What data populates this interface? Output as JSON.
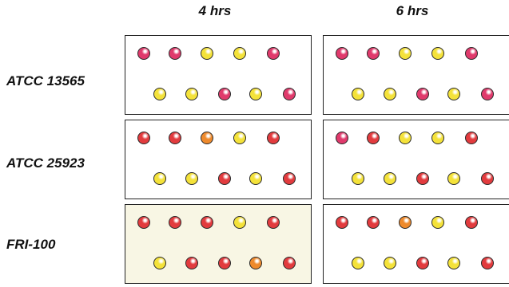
{
  "columns": [
    {
      "label": "4 hrs"
    },
    {
      "label": "6 hrs"
    }
  ],
  "rows": [
    {
      "label": "ATCC 13565"
    },
    {
      "label": "ATCC 25923"
    },
    {
      "label": "FRI-100"
    }
  ],
  "colors": {
    "yellow": "#f4e23a",
    "pink": "#e03a6c",
    "red": "#e23b3e",
    "orange": "#ee8a2c",
    "tinted_panel": "#f8f6e4"
  },
  "wells": [
    {
      "panels": [
        {
          "top": [
            "pink",
            "pink",
            "yellow",
            "yellow",
            "pink"
          ],
          "bottom": [
            "yellow",
            "yellow",
            "pink",
            "yellow",
            "pink"
          ]
        },
        {
          "top": [
            "pink",
            "pink",
            "yellow",
            "yellow",
            "pink"
          ],
          "bottom": [
            "yellow",
            "yellow",
            "pink",
            "yellow",
            "pink"
          ]
        }
      ]
    },
    {
      "panels": [
        {
          "top": [
            "red",
            "red",
            "orange",
            "yellow",
            "red"
          ],
          "bottom": [
            "yellow",
            "yellow",
            "red",
            "yellow",
            "red"
          ]
        },
        {
          "top": [
            "pink",
            "red",
            "yellow",
            "yellow",
            "red"
          ],
          "bottom": [
            "yellow",
            "yellow",
            "red",
            "yellow",
            "red"
          ]
        }
      ]
    },
    {
      "panels": [
        {
          "top": [
            "red",
            "red",
            "red",
            "yellow",
            "red"
          ],
          "bottom": [
            "yellow",
            "red",
            "red",
            "orange",
            "red"
          ]
        },
        {
          "top": [
            "red",
            "red",
            "orange",
            "yellow",
            "red"
          ],
          "bottom": [
            "yellow",
            "yellow",
            "red",
            "yellow",
            "red"
          ]
        }
      ]
    }
  ]
}
